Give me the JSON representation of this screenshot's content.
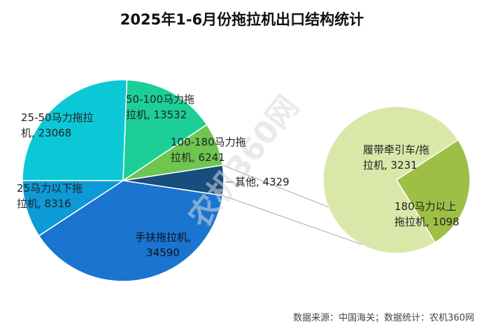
{
  "chart_data": {
    "type": "pie",
    "title": "2025年1-6月份拖拉机出口结构统计",
    "slices": [
      {
        "label": "25-50马力拖拉机",
        "value": 23068,
        "color": "#0cc8d6"
      },
      {
        "label": "50-100马力拖拉机",
        "value": 13532,
        "color": "#1ccf96"
      },
      {
        "label": "100-180马力拖拉机",
        "value": 6241,
        "color": "#6ec54f"
      },
      {
        "label": "其他",
        "value": 4329,
        "color": "#184d7d"
      },
      {
        "label": "手扶拖拉机",
        "value": 34590,
        "color": "#1a74d0"
      },
      {
        "label": "25马力以下拖拉机",
        "value": 8316,
        "color": "#0d9ad6"
      }
    ],
    "breakdown": {
      "of": "其他",
      "slices": [
        {
          "label": "履带牵引车/拖拉机",
          "value": 3231,
          "color": "#d9e8a8"
        },
        {
          "label": "180马力以上拖拉机",
          "value": 1098,
          "color": "#9dbf45"
        }
      ]
    },
    "labels": {
      "s0": [
        "25-50马力拖拉",
        "机, 23068"
      ],
      "s1": [
        "50-100马力拖",
        "拉机, 13532"
      ],
      "s2": [
        "100-180马力拖",
        "拉机, 6241"
      ],
      "s3": [
        "其他, 4329"
      ],
      "s4": [
        "手扶拖拉机,",
        "34590"
      ],
      "s5": [
        "25马力以下拖",
        "拉机, 8316"
      ],
      "b0": [
        "履带牵引车/拖",
        "拉机, 3231"
      ],
      "b1": [
        "180马力以上",
        "拖拉机, 1098"
      ]
    }
  },
  "watermark": "农机360网",
  "source": "数据来源：中国海关；数据统计：农机360网"
}
